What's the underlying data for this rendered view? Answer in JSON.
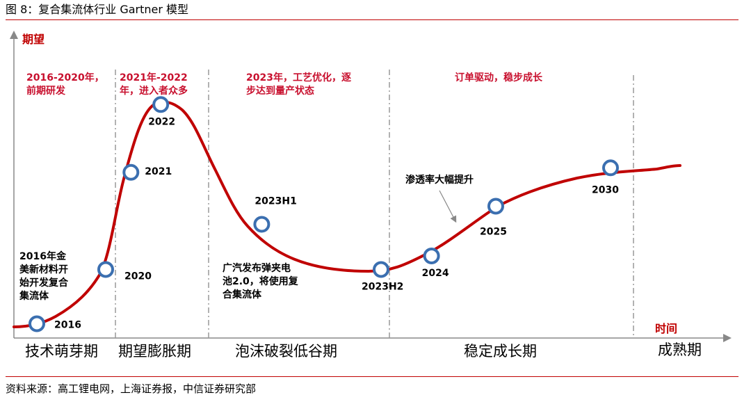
{
  "figure": {
    "caption": "图 8：复合集流体行业 Gartner 模型",
    "source": "资料来源：高工锂电网，上海证券报，中信证券研究部"
  },
  "chart_data": {
    "type": "line",
    "title": "复合集流体行业 Gartner 模型",
    "xlabel": "时间",
    "ylabel": "期望",
    "phases": [
      "技术萌芽期",
      "期望膨胀期",
      "泡沫破裂低谷期",
      "稳定成长期",
      "成熟期"
    ],
    "phase_notes": [
      [
        "2016-2020年，",
        "前期研发"
      ],
      [
        "2021年-2022",
        "年，进入者众多"
      ],
      [
        "2023年，工艺优化，逐",
        "步达到量产状态"
      ],
      [
        "订单驱动，稳步成长"
      ]
    ],
    "points": [
      {
        "label": "2016",
        "t": 0.05,
        "expectation": 0.02
      },
      {
        "label": "2020",
        "t": 0.2,
        "expectation": 0.26
      },
      {
        "label": "2021",
        "t": 0.255,
        "expectation": 0.69
      },
      {
        "label": "2022",
        "t": 0.32,
        "expectation": 0.99
      },
      {
        "label": "2023H1",
        "t": 0.54,
        "expectation": 0.46
      },
      {
        "label": "2023H2",
        "t": 0.8,
        "expectation": 0.26
      },
      {
        "label": "2024",
        "t": 0.91,
        "expectation": 0.32
      },
      {
        "label": "2025",
        "t": 1.05,
        "expectation": 0.54
      },
      {
        "label": "2030",
        "t": 1.3,
        "expectation": 0.71
      }
    ],
    "annotations": [
      {
        "lines": [
          "2016年金",
          "美新材料开",
          "始开发复合",
          "集流体"
        ]
      },
      {
        "lines": [
          "广汽发布弹夹电",
          "池2.0，将使用复",
          "合集流体"
        ]
      },
      {
        "lines": [
          "渗透率大幅提升"
        ]
      }
    ],
    "colors": {
      "curve": "#c00000",
      "marker": "#3b6fb0",
      "text_red": "#c8102e"
    }
  }
}
